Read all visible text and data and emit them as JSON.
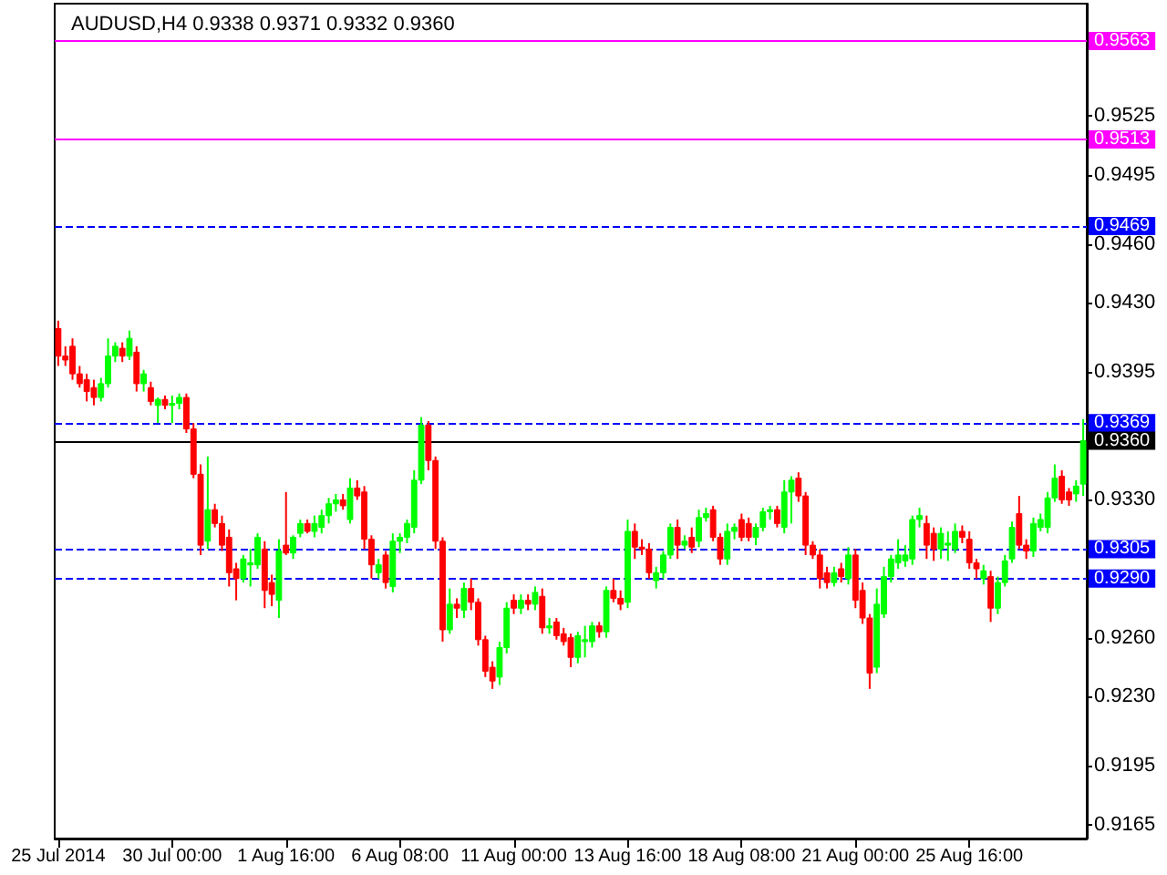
{
  "chart_data": {
    "type": "candlestick",
    "title": "AUDUSD,H4 0.9338 0.9371 0.9332 0.9360",
    "categories": [
      "25 Jul 2014",
      null,
      null,
      null,
      null,
      null,
      null,
      null,
      null,
      null,
      null,
      null,
      null,
      null,
      null,
      null,
      "30 Jul 00:00",
      null,
      null,
      null,
      null,
      null,
      null,
      null,
      null,
      null,
      null,
      null,
      null,
      null,
      null,
      null,
      "1 Aug 16:00",
      null,
      null,
      null,
      null,
      null,
      null,
      null,
      null,
      null,
      null,
      null,
      null,
      null,
      null,
      null,
      "6 Aug 08:00",
      null,
      null,
      null,
      null,
      null,
      null,
      null,
      null,
      null,
      null,
      null,
      null,
      null,
      null,
      null,
      "11 Aug 00:00",
      null,
      null,
      null,
      null,
      null,
      null,
      null,
      null,
      null,
      null,
      null,
      null,
      null,
      null,
      null,
      "13 Aug 16:00",
      null,
      null,
      null,
      null,
      null,
      null,
      null,
      null,
      null,
      null,
      null,
      null,
      null,
      null,
      null,
      "18 Aug 08:00",
      null,
      null,
      null,
      null,
      null,
      null,
      null,
      null,
      null,
      null,
      null,
      null,
      null,
      null,
      null,
      "21 Aug 00:00",
      null,
      null,
      null,
      null,
      null,
      null,
      null,
      null,
      null,
      null,
      null,
      null,
      null,
      null,
      null,
      "25 Aug 16:00",
      null,
      null,
      null,
      null,
      null,
      null,
      null,
      null,
      null,
      null,
      null,
      null,
      null,
      null,
      null,
      null
    ],
    "ohlc": [
      [
        0.9417,
        0.9421,
        0.9398,
        0.9403
      ],
      [
        0.9403,
        0.9408,
        0.9398,
        0.9401
      ],
      [
        0.9408,
        0.9412,
        0.9391,
        0.9394
      ],
      [
        0.9394,
        0.9398,
        0.9387,
        0.9389
      ],
      [
        0.9391,
        0.9394,
        0.938,
        0.9385
      ],
      [
        0.9387,
        0.9391,
        0.9378,
        0.9382
      ],
      [
        0.9382,
        0.9392,
        0.938,
        0.9389
      ],
      [
        0.9389,
        0.9412,
        0.9387,
        0.9403
      ],
      [
        0.9403,
        0.941,
        0.94,
        0.9408
      ],
      [
        0.9407,
        0.941,
        0.94,
        0.9403
      ],
      [
        0.9403,
        0.9416,
        0.9401,
        0.9412
      ],
      [
        0.9405,
        0.9408,
        0.9385,
        0.9389
      ],
      [
        0.9389,
        0.9396,
        0.9385,
        0.9394
      ],
      [
        0.9387,
        0.939,
        0.9378,
        0.938
      ],
      [
        0.9378,
        0.9382,
        0.9369,
        0.9381
      ],
      [
        0.9381,
        0.9383,
        0.9376,
        0.9378
      ],
      [
        0.9378,
        0.9383,
        0.9369,
        0.9379
      ],
      [
        0.9379,
        0.9384,
        0.9376,
        0.9382
      ],
      [
        0.9382,
        0.9384,
        0.9364,
        0.9366
      ],
      [
        0.9366,
        0.9369,
        0.9341,
        0.9343
      ],
      [
        0.9343,
        0.9348,
        0.9302,
        0.9307
      ],
      [
        0.9309,
        0.9352,
        0.9305,
        0.9325
      ],
      [
        0.9325,
        0.9328,
        0.9316,
        0.9318
      ],
      [
        0.9318,
        0.9322,
        0.9304,
        0.9307
      ],
      [
        0.9311,
        0.9315,
        0.9286,
        0.9293
      ],
      [
        0.9295,
        0.9298,
        0.9279,
        0.929
      ],
      [
        0.929,
        0.9302,
        0.9288,
        0.93
      ],
      [
        0.9297,
        0.9305,
        0.9286,
        0.9298
      ],
      [
        0.9297,
        0.9313,
        0.9295,
        0.9311
      ],
      [
        0.9305,
        0.9309,
        0.9275,
        0.9284
      ],
      [
        0.9288,
        0.9292,
        0.9276,
        0.9282
      ],
      [
        0.9279,
        0.931,
        0.927,
        0.9304
      ],
      [
        0.9307,
        0.9334,
        0.9302,
        0.9303
      ],
      [
        0.9303,
        0.9312,
        0.93,
        0.9311
      ],
      [
        0.9313,
        0.932,
        0.9311,
        0.9318
      ],
      [
        0.9318,
        0.932,
        0.9313,
        0.9314
      ],
      [
        0.9314,
        0.9322,
        0.9311,
        0.9318
      ],
      [
        0.9316,
        0.9325,
        0.9313,
        0.9322
      ],
      [
        0.9322,
        0.9331,
        0.9318,
        0.9328
      ],
      [
        0.9328,
        0.9333,
        0.9324,
        0.933
      ],
      [
        0.933,
        0.9333,
        0.9325,
        0.9327
      ],
      [
        0.932,
        0.9341,
        0.9318,
        0.9336
      ],
      [
        0.9336,
        0.934,
        0.933,
        0.9332
      ],
      [
        0.9334,
        0.9337,
        0.9305,
        0.931
      ],
      [
        0.931,
        0.9312,
        0.929,
        0.9297
      ],
      [
        0.9293,
        0.93,
        0.929,
        0.9297
      ],
      [
        0.9302,
        0.9304,
        0.9285,
        0.9288
      ],
      [
        0.9286,
        0.9313,
        0.9283,
        0.9309
      ],
      [
        0.9309,
        0.9313,
        0.9303,
        0.9311
      ],
      [
        0.9311,
        0.932,
        0.9308,
        0.9318
      ],
      [
        0.9316,
        0.9345,
        0.9313,
        0.934
      ],
      [
        0.934,
        0.9372,
        0.9338,
        0.9368
      ],
      [
        0.9368,
        0.937,
        0.9345,
        0.935
      ],
      [
        0.935,
        0.9352,
        0.9305,
        0.9309
      ],
      [
        0.9309,
        0.9311,
        0.9258,
        0.9264
      ],
      [
        0.9264,
        0.9285,
        0.9262,
        0.9277
      ],
      [
        0.9277,
        0.928,
        0.927,
        0.9275
      ],
      [
        0.9274,
        0.9288,
        0.927,
        0.9285
      ],
      [
        0.9285,
        0.929,
        0.9274,
        0.9278
      ],
      [
        0.9278,
        0.928,
        0.9256,
        0.9259
      ],
      [
        0.9259,
        0.9261,
        0.924,
        0.9243
      ],
      [
        0.9245,
        0.9248,
        0.9234,
        0.9238
      ],
      [
        0.924,
        0.9258,
        0.9236,
        0.9255
      ],
      [
        0.9255,
        0.9278,
        0.9252,
        0.9275
      ],
      [
        0.9279,
        0.9282,
        0.9272,
        0.9275
      ],
      [
        0.9275,
        0.9282,
        0.9272,
        0.9279
      ],
      [
        0.9279,
        0.9282,
        0.9274,
        0.9277
      ],
      [
        0.9277,
        0.9286,
        0.9274,
        0.9283
      ],
      [
        0.9281,
        0.9285,
        0.9262,
        0.9265
      ],
      [
        0.9265,
        0.927,
        0.9262,
        0.9266
      ],
      [
        0.9268,
        0.927,
        0.9259,
        0.9261
      ],
      [
        0.9262,
        0.9265,
        0.9256,
        0.9258
      ],
      [
        0.926,
        0.9262,
        0.9245,
        0.925
      ],
      [
        0.925,
        0.9263,
        0.9247,
        0.9261
      ],
      [
        0.9258,
        0.9266,
        0.925,
        0.9259
      ],
      [
        0.9258,
        0.9268,
        0.9255,
        0.9266
      ],
      [
        0.9266,
        0.9268,
        0.926,
        0.9263
      ],
      [
        0.9263,
        0.9286,
        0.926,
        0.9284
      ],
      [
        0.9284,
        0.929,
        0.9278,
        0.928
      ],
      [
        0.928,
        0.9284,
        0.9274,
        0.9277
      ],
      [
        0.9278,
        0.932,
        0.9275,
        0.9314
      ],
      [
        0.9314,
        0.9318,
        0.93,
        0.9306
      ],
      [
        0.9306,
        0.931,
        0.9302,
        0.9305
      ],
      [
        0.9305,
        0.9308,
        0.929,
        0.9293
      ],
      [
        0.9289,
        0.9296,
        0.9285,
        0.9293
      ],
      [
        0.9293,
        0.9304,
        0.929,
        0.9302
      ],
      [
        0.9302,
        0.9318,
        0.93,
        0.9316
      ],
      [
        0.9316,
        0.932,
        0.93,
        0.9307
      ],
      [
        0.9307,
        0.9312,
        0.9305,
        0.9309
      ],
      [
        0.9311,
        0.9316,
        0.9303,
        0.9306
      ],
      [
        0.9309,
        0.9325,
        0.9306,
        0.9321
      ],
      [
        0.9321,
        0.9326,
        0.9319,
        0.9323
      ],
      [
        0.9325,
        0.9327,
        0.9309,
        0.9311
      ],
      [
        0.9311,
        0.9313,
        0.9297,
        0.93
      ],
      [
        0.93,
        0.9318,
        0.9297,
        0.9314
      ],
      [
        0.9314,
        0.9318,
        0.931,
        0.9316
      ],
      [
        0.932,
        0.9323,
        0.9309,
        0.9311
      ],
      [
        0.9318,
        0.9321,
        0.9309,
        0.9311
      ],
      [
        0.9311,
        0.9318,
        0.9307,
        0.9316
      ],
      [
        0.9316,
        0.9326,
        0.9314,
        0.9324
      ],
      [
        0.9324,
        0.9327,
        0.932,
        0.9325
      ],
      [
        0.9325,
        0.9327,
        0.9316,
        0.9318
      ],
      [
        0.9316,
        0.934,
        0.9313,
        0.9334
      ],
      [
        0.9334,
        0.9342,
        0.9318,
        0.934
      ],
      [
        0.9341,
        0.9344,
        0.9329,
        0.9332
      ],
      [
        0.9332,
        0.9334,
        0.9302,
        0.9307
      ],
      [
        0.9307,
        0.9309,
        0.93,
        0.9302
      ],
      [
        0.9302,
        0.9305,
        0.9285,
        0.929
      ],
      [
        0.9293,
        0.9296,
        0.9285,
        0.9288
      ],
      [
        0.9288,
        0.9296,
        0.9286,
        0.9293
      ],
      [
        0.9295,
        0.9298,
        0.9288,
        0.9291
      ],
      [
        0.929,
        0.9306,
        0.9287,
        0.9302
      ],
      [
        0.9302,
        0.9305,
        0.9275,
        0.9279
      ],
      [
        0.9284,
        0.9288,
        0.9267,
        0.927
      ],
      [
        0.927,
        0.9272,
        0.9234,
        0.9242
      ],
      [
        0.9245,
        0.9285,
        0.9242,
        0.9277
      ],
      [
        0.9272,
        0.9296,
        0.927,
        0.9291
      ],
      [
        0.9291,
        0.9302,
        0.9288,
        0.93
      ],
      [
        0.9298,
        0.931,
        0.9295,
        0.9302
      ],
      [
        0.9299,
        0.9307,
        0.9296,
        0.9302
      ],
      [
        0.93,
        0.9322,
        0.9297,
        0.932
      ],
      [
        0.932,
        0.9326,
        0.9316,
        0.9322
      ],
      [
        0.9318,
        0.9322,
        0.93,
        0.9307
      ],
      [
        0.9313,
        0.9316,
        0.9299,
        0.9305
      ],
      [
        0.9305,
        0.9316,
        0.93,
        0.9313
      ],
      [
        0.9307,
        0.9314,
        0.9299,
        0.9308
      ],
      [
        0.9305,
        0.9318,
        0.9303,
        0.9314
      ],
      [
        0.9314,
        0.9317,
        0.9308,
        0.9311
      ],
      [
        0.931,
        0.9314,
        0.9295,
        0.9298
      ],
      [
        0.9298,
        0.93,
        0.929,
        0.9295
      ],
      [
        0.929,
        0.9297,
        0.9287,
        0.9294
      ],
      [
        0.9291,
        0.9294,
        0.9268,
        0.9275
      ],
      [
        0.9275,
        0.9291,
        0.9272,
        0.9288
      ],
      [
        0.9288,
        0.9302,
        0.9286,
        0.9299
      ],
      [
        0.93,
        0.9319,
        0.9298,
        0.9316
      ],
      [
        0.9323,
        0.9332,
        0.9305,
        0.9307
      ],
      [
        0.9307,
        0.931,
        0.93,
        0.9304
      ],
      [
        0.9304,
        0.9321,
        0.9301,
        0.9318
      ],
      [
        0.9316,
        0.9323,
        0.9314,
        0.932
      ],
      [
        0.9316,
        0.9334,
        0.9313,
        0.9331
      ],
      [
        0.9331,
        0.9348,
        0.9329,
        0.9341
      ],
      [
        0.9342,
        0.9345,
        0.9328,
        0.933
      ],
      [
        0.9334,
        0.9336,
        0.9327,
        0.933
      ],
      [
        0.9333,
        0.934,
        0.9329,
        0.9337
      ],
      [
        0.9338,
        0.9371,
        0.9332,
        0.936
      ]
    ],
    "colors": [
      "#ff0000",
      "#ff0000",
      "#ff0000",
      "#ff0000",
      "#ff0000",
      "#ff0000",
      "#00ff00",
      "#00ff00",
      "#00ff00",
      "#ff0000",
      "#00ff00",
      "#ff0000",
      "#00ff00",
      "#ff0000",
      "#00ff00",
      "#ff0000",
      "#00ff00",
      "#00ff00",
      "#ff0000",
      "#ff0000",
      "#ff0000",
      "#00ff00",
      "#ff0000",
      "#ff0000",
      "#ff0000",
      "#ff0000",
      "#00ff00",
      "#00ff00",
      "#00ff00",
      "#ff0000",
      "#ff0000",
      "#00ff00",
      "#ff0000",
      "#00ff00",
      "#00ff00",
      "#ff0000",
      "#00ff00",
      "#00ff00",
      "#00ff00",
      "#00ff00",
      "#ff0000",
      "#00ff00",
      "#ff0000",
      "#ff0000",
      "#ff0000",
      "#00ff00",
      "#ff0000",
      "#00ff00",
      "#00ff00",
      "#00ff00",
      "#00ff00",
      "#00ff00",
      "#ff0000",
      "#ff0000",
      "#ff0000",
      "#00ff00",
      "#ff0000",
      "#00ff00",
      "#ff0000",
      "#ff0000",
      "#ff0000",
      "#ff0000",
      "#00ff00",
      "#00ff00",
      "#ff0000",
      "#00ff00",
      "#ff0000",
      "#00ff00",
      "#ff0000",
      "#00ff00",
      "#ff0000",
      "#ff0000",
      "#ff0000",
      "#00ff00",
      "#00ff00",
      "#00ff00",
      "#ff0000",
      "#00ff00",
      "#ff0000",
      "#ff0000",
      "#00ff00",
      "#ff0000",
      "#ff0000",
      "#ff0000",
      "#00ff00",
      "#00ff00",
      "#00ff00",
      "#ff0000",
      "#00ff00",
      "#ff0000",
      "#00ff00",
      "#00ff00",
      "#ff0000",
      "#ff0000",
      "#00ff00",
      "#00ff00",
      "#ff0000",
      "#ff0000",
      "#00ff00",
      "#00ff00",
      "#00ff00",
      "#ff0000",
      "#00ff00",
      "#00ff00",
      "#ff0000",
      "#ff0000",
      "#ff0000",
      "#ff0000",
      "#ff0000",
      "#00ff00",
      "#ff0000",
      "#00ff00",
      "#ff0000",
      "#ff0000",
      "#ff0000",
      "#00ff00",
      "#00ff00",
      "#00ff00",
      "#00ff00",
      "#00ff00",
      "#00ff00",
      "#00ff00",
      "#ff0000",
      "#ff0000",
      "#00ff00",
      "#00ff00",
      "#00ff00",
      "#ff0000",
      "#ff0000",
      "#ff0000",
      "#00ff00",
      "#ff0000",
      "#00ff00",
      "#00ff00",
      "#00ff00",
      "#ff0000",
      "#ff0000",
      "#00ff00",
      "#00ff00",
      "#00ff00",
      "#00ff00",
      "#ff0000",
      "#ff0000",
      "#00ff00",
      "#00ff00"
    ],
    "ylim": [
      0.9158,
      0.9582
    ],
    "yticks": [
      0.9165,
      0.9195,
      {
        "value": 0.923,
        "label": "0.9230"
      },
      {
        "value": 0.926,
        "label": "0.9260"
      },
      {
        "value": 0.933,
        "label": "0.9330"
      },
      0.9395,
      {
        "value": 0.943,
        "label": "0.9430"
      },
      {
        "value": 0.946,
        "label": "0.9460"
      },
      0.9495,
      0.9525
    ],
    "ref_lines": [
      {
        "axis": "y",
        "value": 0.9563,
        "label": "0.9563",
        "color": "#ff00ff",
        "line_style": "solid"
      },
      {
        "axis": "y",
        "value": 0.9513,
        "label": "0.9513",
        "color": "#ff00ff",
        "line_style": "solid"
      },
      {
        "axis": "y",
        "value": 0.9469,
        "label": "0.9469",
        "color": "#0000ff",
        "line_style": "dashed"
      },
      {
        "axis": "y",
        "value": 0.9369,
        "label": "0.9369",
        "color": "#0000ff",
        "line_style": "dashed"
      },
      {
        "axis": "y",
        "value": 0.936,
        "label": "0.9360",
        "color": "#000000",
        "line_style": "solid"
      },
      {
        "axis": "y",
        "value": 0.9305,
        "label": "0.9305",
        "color": "#0000ff",
        "line_style": "dashed"
      },
      {
        "axis": "y",
        "value": 0.929,
        "label": "0.9290",
        "color": "#0000ff",
        "line_style": "dashed"
      }
    ]
  }
}
